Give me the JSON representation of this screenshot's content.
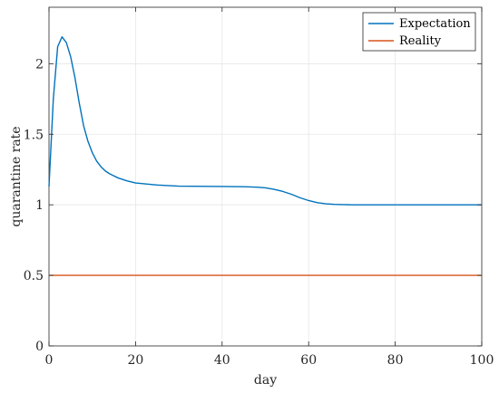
{
  "chart_data": {
    "type": "line",
    "xlabel": "day",
    "ylabel": "quarantine rate",
    "xlim": [
      0,
      100
    ],
    "ylim": [
      0,
      2.4
    ],
    "xticks": [
      0,
      20,
      40,
      60,
      80,
      100
    ],
    "xtick_labels": [
      "0",
      "20",
      "40",
      "60",
      "80",
      "100"
    ],
    "yticks": [
      0,
      0.5,
      1,
      1.5,
      2
    ],
    "ytick_labels": [
      "0",
      "0.5",
      "1",
      "1.5",
      "2"
    ],
    "grid": true,
    "legend_position": "top-right",
    "series": [
      {
        "name": "Expectation",
        "color": "#0072BD",
        "x": [
          0,
          1,
          2,
          3,
          4,
          5,
          6,
          7,
          8,
          9,
          10,
          11,
          12,
          13,
          14,
          15,
          16,
          18,
          20,
          25,
          30,
          40,
          45,
          48,
          50,
          52,
          54,
          56,
          58,
          60,
          62,
          64,
          66,
          70,
          80,
          90,
          100
        ],
        "y": [
          1.13,
          1.75,
          2.12,
          2.19,
          2.15,
          2.05,
          1.9,
          1.72,
          1.56,
          1.45,
          1.37,
          1.31,
          1.27,
          1.24,
          1.22,
          1.205,
          1.19,
          1.17,
          1.155,
          1.14,
          1.132,
          1.13,
          1.128,
          1.125,
          1.12,
          1.11,
          1.095,
          1.075,
          1.05,
          1.03,
          1.015,
          1.007,
          1.003,
          1.0,
          1.0,
          1.0,
          1.0
        ]
      },
      {
        "name": "Reality",
        "color": "#D95319",
        "x": [
          0,
          100
        ],
        "y": [
          0.5,
          0.5
        ]
      }
    ]
  }
}
